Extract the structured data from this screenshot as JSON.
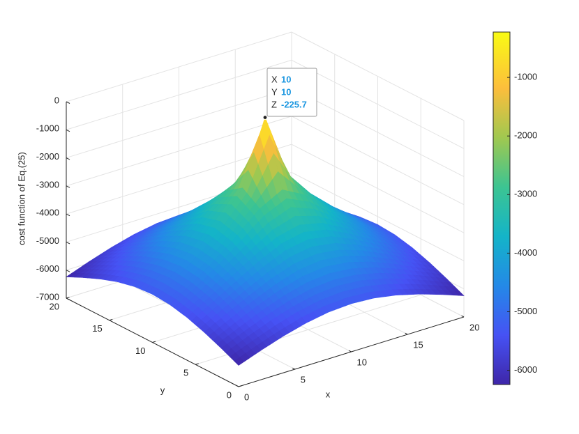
{
  "chart_data": {
    "type": "surface",
    "xlabel": "x",
    "ylabel": "y",
    "zlabel": "cost function of Eq.(25)",
    "x": [
      0,
      2,
      4,
      6,
      8,
      10,
      12,
      14,
      16,
      18,
      20
    ],
    "y": [
      0,
      2,
      4,
      6,
      8,
      10,
      12,
      14,
      16,
      18,
      20
    ],
    "z": [
      [
        -6243,
        -5952,
        -5690,
        -5477,
        -5335,
        -5286,
        -5335,
        -5477,
        -5690,
        -5952,
        -6243
      ],
      [
        -5952,
        -5608,
        -5286,
        -5011,
        -4821,
        -4751,
        -4821,
        -5011,
        -5286,
        -5608,
        -5952
      ],
      [
        -5690,
        -5286,
        -4887,
        -4523,
        -4250,
        -4145,
        -4250,
        -4523,
        -4887,
        -5286,
        -5690
      ],
      [
        -5477,
        -5011,
        -4523,
        -4031,
        -3610,
        -3426,
        -3610,
        -4031,
        -4523,
        -5011,
        -5477
      ],
      [
        -5335,
        -4821,
        -4250,
        -3610,
        -2917,
        -2489,
        -2917,
        -3610,
        -4250,
        -4821,
        -5335
      ],
      [
        -5286,
        -4751,
        -4145,
        -3426,
        -2489,
        -225.7,
        -2489,
        -3426,
        -4145,
        -4751,
        -5286
      ],
      [
        -5335,
        -4821,
        -4250,
        -3610,
        -2917,
        -2489,
        -2917,
        -3610,
        -4250,
        -4821,
        -5335
      ],
      [
        -5477,
        -5011,
        -4523,
        -4031,
        -3610,
        -3426,
        -3610,
        -4031,
        -4523,
        -5011,
        -5477
      ],
      [
        -5690,
        -5286,
        -4887,
        -4523,
        -4250,
        -4145,
        -4250,
        -4523,
        -4887,
        -5286,
        -5690
      ],
      [
        -5952,
        -5608,
        -5286,
        -5011,
        -4821,
        -4751,
        -4821,
        -5011,
        -5286,
        -5608,
        -5952
      ],
      [
        -6243,
        -5952,
        -5690,
        -5477,
        -5335,
        -5286,
        -5335,
        -5477,
        -5690,
        -5952,
        -6243
      ]
    ],
    "xlim": [
      0,
      20
    ],
    "ylim": [
      0,
      20
    ],
    "zlim": [
      -7000,
      0
    ],
    "xticks": [
      0,
      5,
      10,
      15,
      20
    ],
    "yticks": [
      0,
      5,
      10,
      15,
      20
    ],
    "zticks": [
      -7000,
      -6000,
      -5000,
      -4000,
      -3000,
      -2000,
      -1000,
      0
    ],
    "grid": true,
    "colormap": "parula",
    "clim": [
      -6243,
      -225.7
    ],
    "cticks": [
      -6000,
      -5000,
      -4000,
      -3000,
      -2000,
      -1000
    ],
    "datatip": {
      "labels": [
        "X",
        "Y",
        "Z"
      ],
      "values": [
        10,
        10,
        -225.7
      ]
    }
  }
}
